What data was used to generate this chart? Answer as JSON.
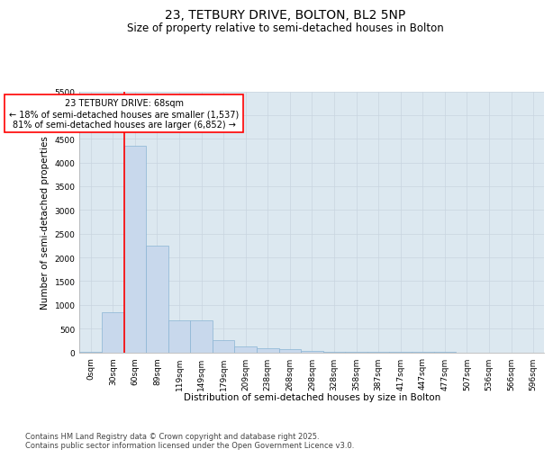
{
  "title": "23, TETBURY DRIVE, BOLTON, BL2 5NP",
  "subtitle": "Size of property relative to semi-detached houses in Bolton",
  "xlabel": "Distribution of semi-detached houses by size in Bolton",
  "ylabel": "Number of semi-detached properties",
  "bin_labels": [
    "0sqm",
    "30sqm",
    "60sqm",
    "89sqm",
    "119sqm",
    "149sqm",
    "179sqm",
    "209sqm",
    "238sqm",
    "268sqm",
    "298sqm",
    "328sqm",
    "358sqm",
    "387sqm",
    "417sqm",
    "447sqm",
    "477sqm",
    "507sqm",
    "536sqm",
    "566sqm",
    "596sqm"
  ],
  "bar_heights": [
    5,
    850,
    4350,
    2250,
    670,
    670,
    260,
    130,
    80,
    70,
    30,
    15,
    5,
    3,
    2,
    1,
    1,
    0,
    0,
    0,
    0
  ],
  "bar_color": "#c8d8ec",
  "bar_edgecolor": "#8ab4d4",
  "bar_linewidth": 0.5,
  "property_sqm": 68,
  "annotation_text_line1": "23 TETBURY DRIVE: 68sqm",
  "annotation_text_line2": "← 18% of semi-detached houses are smaller (1,537)",
  "annotation_text_line3": "81% of semi-detached houses are larger (6,852) →",
  "ylim": [
    0,
    5500
  ],
  "yticks": [
    0,
    500,
    1000,
    1500,
    2000,
    2500,
    3000,
    3500,
    4000,
    4500,
    5000,
    5500
  ],
  "grid_color": "#c8d4e0",
  "bg_color": "#dce8f0",
  "footer_line1": "Contains HM Land Registry data © Crown copyright and database right 2025.",
  "footer_line2": "Contains public sector information licensed under the Open Government Licence v3.0.",
  "title_fontsize": 10,
  "subtitle_fontsize": 8.5,
  "axis_label_fontsize": 7.5,
  "tick_fontsize": 6.5,
  "annotation_fontsize": 7,
  "footer_fontsize": 6
}
